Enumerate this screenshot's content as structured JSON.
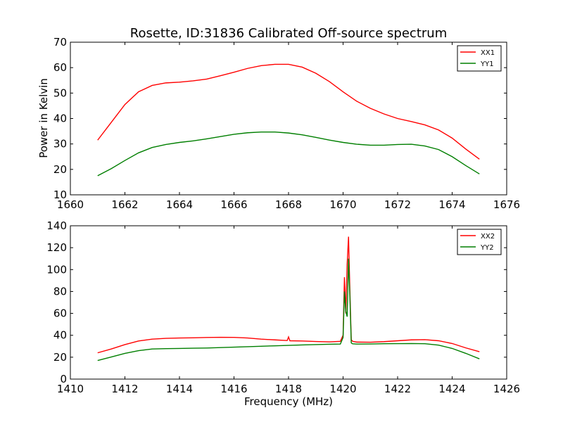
{
  "figure": {
    "title": "Rosette, ID:31836 Calibrated Off-source spectrum"
  },
  "chart_data": [
    {
      "type": "line",
      "xlabel": "",
      "ylabel": "Power in Kelvin",
      "xlim": [
        1660,
        1676
      ],
      "ylim": [
        10,
        70
      ],
      "xticks": [
        "1660",
        "1662",
        "1664",
        "1666",
        "1668",
        "1670",
        "1672",
        "1674",
        "1676"
      ],
      "yticks": [
        "10",
        "20",
        "30",
        "40",
        "50",
        "60",
        "70"
      ],
      "legend": "top-right",
      "grid": false,
      "series": [
        {
          "name": "XX1",
          "color": "#ff0000",
          "x": [
            1661.0,
            1661.5,
            1662.0,
            1662.5,
            1663.0,
            1663.5,
            1664.0,
            1664.5,
            1665.0,
            1665.5,
            1666.0,
            1666.5,
            1667.0,
            1667.5,
            1668.0,
            1668.5,
            1669.0,
            1669.5,
            1670.0,
            1670.5,
            1671.0,
            1671.5,
            1672.0,
            1672.5,
            1673.0,
            1673.5,
            1674.0,
            1674.5,
            1675.0
          ],
          "y": [
            31.5,
            38.5,
            45.5,
            50.5,
            53.0,
            54.0,
            54.3,
            54.8,
            55.5,
            56.8,
            58.2,
            59.7,
            60.8,
            61.3,
            61.3,
            60.2,
            57.8,
            54.5,
            50.5,
            46.8,
            44.0,
            41.8,
            40.0,
            38.8,
            37.5,
            35.5,
            32.3,
            28.0,
            24.0
          ]
        },
        {
          "name": "YY1",
          "color": "#007f00",
          "x": [
            1661.0,
            1661.5,
            1662.0,
            1662.5,
            1663.0,
            1663.5,
            1664.0,
            1664.5,
            1665.0,
            1665.5,
            1666.0,
            1666.5,
            1667.0,
            1667.5,
            1668.0,
            1668.5,
            1669.0,
            1669.5,
            1670.0,
            1670.5,
            1671.0,
            1671.5,
            1672.0,
            1672.5,
            1673.0,
            1673.5,
            1674.0,
            1674.5,
            1675.0
          ],
          "y": [
            17.5,
            20.3,
            23.5,
            26.5,
            28.6,
            29.8,
            30.6,
            31.2,
            32.0,
            32.9,
            33.8,
            34.4,
            34.7,
            34.7,
            34.3,
            33.6,
            32.6,
            31.5,
            30.6,
            29.9,
            29.5,
            29.5,
            29.8,
            29.9,
            29.2,
            27.8,
            25.0,
            21.5,
            18.2
          ]
        }
      ]
    },
    {
      "type": "line",
      "xlabel": "Frequency (MHz)",
      "ylabel": "",
      "xlim": [
        1410,
        1426
      ],
      "ylim": [
        0,
        140
      ],
      "xticks": [
        "1410",
        "1412",
        "1414",
        "1416",
        "1418",
        "1420",
        "1422",
        "1424",
        "1426"
      ],
      "yticks": [
        "0",
        "20",
        "40",
        "60",
        "80",
        "100",
        "120",
        "140"
      ],
      "legend": "top-right",
      "grid": false,
      "series": [
        {
          "name": "XX2",
          "color": "#ff0000",
          "x": [
            1411.0,
            1411.5,
            1412.0,
            1412.5,
            1413.0,
            1413.5,
            1414.0,
            1414.5,
            1415.0,
            1415.5,
            1416.0,
            1416.5,
            1417.0,
            1417.5,
            1417.95,
            1418.0,
            1418.05,
            1418.5,
            1419.0,
            1419.5,
            1419.9,
            1420.0,
            1420.05,
            1420.1,
            1420.15,
            1420.2,
            1420.25,
            1420.3,
            1420.35,
            1420.5,
            1421.0,
            1421.5,
            1422.0,
            1422.5,
            1423.0,
            1423.5,
            1424.0,
            1424.5,
            1425.0
          ],
          "y": [
            24.0,
            27.5,
            31.5,
            34.8,
            36.5,
            37.2,
            37.5,
            37.7,
            38.0,
            38.2,
            38.1,
            37.5,
            36.5,
            35.8,
            35.2,
            38.5,
            35.0,
            34.8,
            34.3,
            34.0,
            34.5,
            40.0,
            93.0,
            60.0,
            105.0,
            130.0,
            80.0,
            36.0,
            34.5,
            33.8,
            33.7,
            34.2,
            35.0,
            35.8,
            36.0,
            35.0,
            32.5,
            28.5,
            25.0
          ]
        },
        {
          "name": "YY2",
          "color": "#007f00",
          "x": [
            1411.0,
            1411.5,
            1412.0,
            1412.5,
            1413.0,
            1413.5,
            1414.0,
            1414.5,
            1415.0,
            1415.5,
            1416.0,
            1416.5,
            1417.0,
            1417.5,
            1418.0,
            1418.5,
            1419.0,
            1419.5,
            1419.9,
            1420.0,
            1420.05,
            1420.1,
            1420.15,
            1420.2,
            1420.25,
            1420.3,
            1420.35,
            1420.5,
            1421.0,
            1421.5,
            1422.0,
            1422.5,
            1423.0,
            1423.5,
            1424.0,
            1424.5,
            1425.0
          ],
          "y": [
            17.0,
            20.2,
            23.5,
            26.0,
            27.5,
            27.8,
            28.0,
            28.2,
            28.4,
            28.8,
            29.2,
            29.6,
            30.0,
            30.4,
            30.8,
            31.2,
            31.5,
            31.8,
            32.0,
            38.0,
            80.0,
            62.0,
            57.0,
            110.0,
            75.0,
            33.0,
            32.2,
            32.0,
            32.1,
            32.3,
            32.4,
            32.5,
            32.3,
            31.0,
            28.0,
            23.5,
            18.5
          ]
        }
      ]
    }
  ]
}
